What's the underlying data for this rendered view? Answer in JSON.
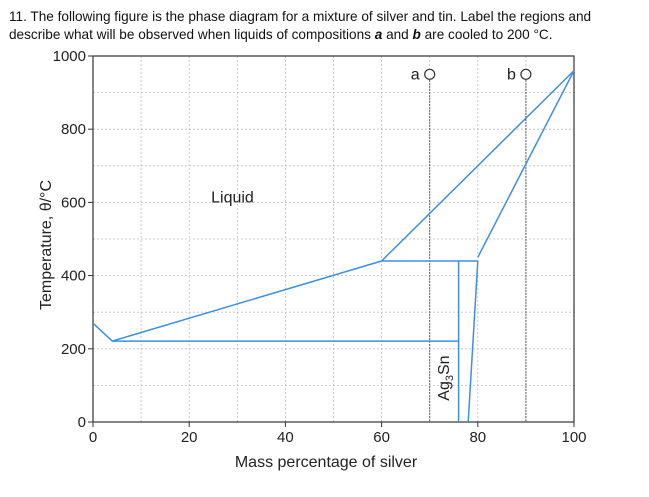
{
  "question": {
    "number": "11.",
    "text_before_a": "The following figure is the phase diagram for a mixture of silver and tin. Label the regions and describe what will be observed when liquids of compositions",
    "a": "a",
    "text_between": "and",
    "b": "b",
    "text_after_b": "are cooled to 200 °C."
  },
  "chart_data": {
    "type": "line",
    "title": "",
    "xlabel": "Mass percentage of silver",
    "ylabel": "Temperature, θ/°C",
    "xlim": [
      0,
      100
    ],
    "ylim": [
      0,
      1000
    ],
    "x_ticks": [
      "0",
      "20",
      "40",
      "60",
      "80",
      "100"
    ],
    "y_ticks": [
      "0",
      "200",
      "400",
      "600",
      "800",
      "1000"
    ],
    "x_tick_values": [
      0,
      20,
      40,
      60,
      80,
      100
    ],
    "y_tick_values": [
      0,
      200,
      400,
      600,
      800,
      1000
    ],
    "grid": true,
    "series": [
      {
        "values": [
          [
            0,
            270
          ],
          [
            4,
            221
          ]
        ]
      },
      {
        "values": [
          [
            4,
            221
          ],
          [
            60,
            440
          ]
        ]
      },
      {
        "values": [
          [
            60,
            440
          ],
          [
            100,
            960
          ]
        ]
      },
      {
        "values": [
          [
            80,
            450
          ],
          [
            100,
            960
          ]
        ]
      },
      {
        "values": [
          [
            4,
            221
          ],
          [
            76,
            221
          ]
        ]
      },
      {
        "values": [
          [
            60,
            440
          ],
          [
            80,
            440
          ]
        ]
      },
      {
        "values": [
          [
            76,
            0
          ],
          [
            76,
            440
          ]
        ]
      },
      {
        "values": [
          [
            78,
            0
          ],
          [
            80,
            440
          ]
        ]
      }
    ],
    "composition_markers": [
      {
        "label": "a",
        "x": 70,
        "y": 950
      },
      {
        "label": "b",
        "x": 90,
        "y": 950
      }
    ],
    "annotations": [
      {
        "text": "Liquid",
        "x": 29,
        "y": 600
      },
      {
        "text": "Ag3Sn",
        "x": 74,
        "y": 120
      }
    ]
  }
}
